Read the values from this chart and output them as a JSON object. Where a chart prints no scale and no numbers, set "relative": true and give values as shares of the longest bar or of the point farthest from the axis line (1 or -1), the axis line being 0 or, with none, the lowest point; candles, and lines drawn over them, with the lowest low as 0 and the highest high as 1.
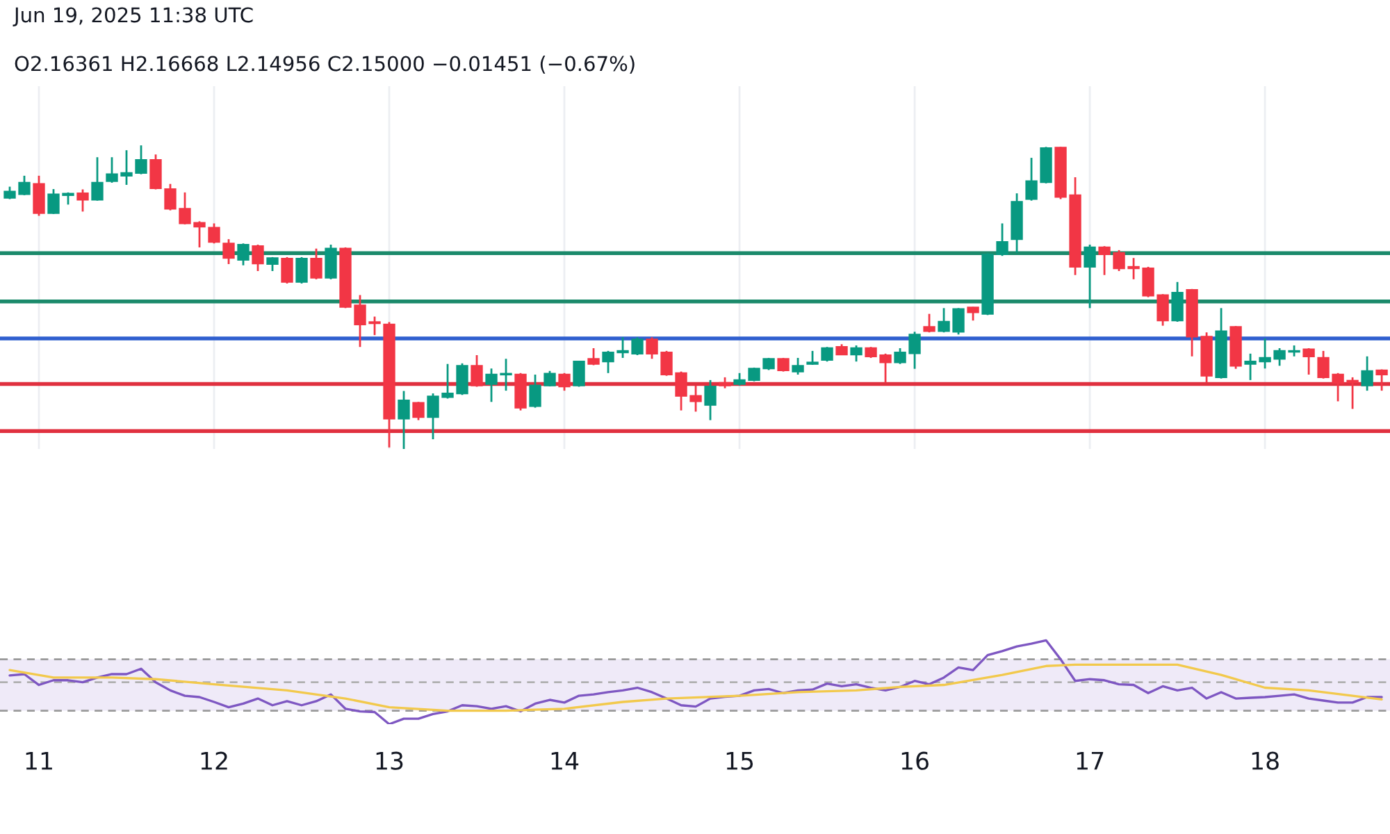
{
  "chart_data": [
    {
      "type": "candlestick",
      "relative": true,
      "tick_labels": false,
      "grid": "x",
      "annotations": [
        "Jun 19, 2025 11:38 UTC",
        "O2.16361 H2.16668 L2.14956 C2.15000 −0.01451 (−0.67%)"
      ],
      "x": [
        "2025-06-10T20:00",
        "2025-06-10T22:00",
        "2025-06-11T00:00",
        "2025-06-11T02:00",
        "2025-06-11T04:00",
        "2025-06-11T06:00",
        "2025-06-11T08:00",
        "2025-06-11T10:00",
        "2025-06-11T12:00",
        "2025-06-11T14:00",
        "2025-06-11T16:00",
        "2025-06-11T18:00",
        "2025-06-11T20:00",
        "2025-06-11T22:00",
        "2025-06-12T00:00",
        "2025-06-12T02:00",
        "2025-06-12T04:00",
        "2025-06-12T06:00",
        "2025-06-12T08:00",
        "2025-06-12T10:00",
        "2025-06-12T12:00",
        "2025-06-12T14:00",
        "2025-06-12T16:00",
        "2025-06-12T18:00",
        "2025-06-12T20:00",
        "2025-06-12T22:00",
        "2025-06-13T00:00",
        "2025-06-13T02:00",
        "2025-06-13T04:00",
        "2025-06-13T06:00",
        "2025-06-13T08:00",
        "2025-06-13T10:00",
        "2025-06-13T12:00",
        "2025-06-13T14:00",
        "2025-06-13T16:00",
        "2025-06-13T18:00",
        "2025-06-13T20:00",
        "2025-06-13T22:00",
        "2025-06-14T00:00",
        "2025-06-14T02:00",
        "2025-06-14T04:00",
        "2025-06-14T06:00",
        "2025-06-14T08:00",
        "2025-06-14T10:00",
        "2025-06-14T12:00",
        "2025-06-14T14:00",
        "2025-06-14T16:00",
        "2025-06-14T18:00",
        "2025-06-14T20:00",
        "2025-06-14T22:00",
        "2025-06-15T00:00",
        "2025-06-15T02:00",
        "2025-06-15T04:00",
        "2025-06-15T06:00",
        "2025-06-15T08:00",
        "2025-06-15T10:00",
        "2025-06-15T12:00",
        "2025-06-15T14:00",
        "2025-06-15T16:00",
        "2025-06-15T18:00",
        "2025-06-15T20:00",
        "2025-06-15T22:00",
        "2025-06-16T00:00",
        "2025-06-16T02:00",
        "2025-06-16T04:00",
        "2025-06-16T06:00",
        "2025-06-16T08:00",
        "2025-06-16T10:00",
        "2025-06-16T12:00",
        "2025-06-16T14:00",
        "2025-06-16T16:00",
        "2025-06-16T18:00",
        "2025-06-16T20:00",
        "2025-06-16T22:00",
        "2025-06-17T00:00",
        "2025-06-17T02:00",
        "2025-06-17T04:00",
        "2025-06-17T06:00",
        "2025-06-17T08:00",
        "2025-06-17T10:00",
        "2025-06-17T12:00",
        "2025-06-17T14:00",
        "2025-06-17T16:00",
        "2025-06-17T18:00",
        "2025-06-17T20:00",
        "2025-06-17T22:00",
        "2025-06-18T00:00",
        "2025-06-18T02:00",
        "2025-06-18T04:00",
        "2025-06-18T06:00",
        "2025-06-18T08:00",
        "2025-06-18T10:00",
        "2025-06-18T12:00",
        "2025-06-18T14:00",
        "2025-06-18T16:00"
      ],
      "ohlc": [
        [
          0.827,
          0.864,
          0.823,
          0.848
        ],
        [
          0.839,
          0.9,
          0.836,
          0.877
        ],
        [
          0.873,
          0.9,
          0.768,
          0.777
        ],
        [
          0.777,
          0.856,
          0.774,
          0.839
        ],
        [
          0.836,
          0.845,
          0.805,
          0.841
        ],
        [
          0.842,
          0.855,
          0.782,
          0.821
        ],
        [
          0.821,
          0.961,
          0.818,
          0.877
        ],
        [
          0.882,
          0.961,
          0.877,
          0.905
        ],
        [
          0.9,
          0.984,
          0.87,
          0.909
        ],
        [
          0.909,
          1,
          0.905,
          0.952
        ],
        [
          0.952,
          0.97,
          0.855,
          0.859
        ],
        [
          0.856,
          0.873,
          0.786,
          0.791
        ],
        [
          0.791,
          0.845,
          0.74,
          0.743
        ],
        [
          0.745,
          0.75,
          0.664,
          0.732
        ],
        [
          0.729,
          0.743,
          0.677,
          0.682
        ],
        [
          0.677,
          0.691,
          0.609,
          0.629
        ],
        [
          0.623,
          0.677,
          0.605,
          0.673
        ],
        [
          0.668,
          0.673,
          0.586,
          0.611
        ],
        [
          0.609,
          0.632,
          0.586,
          0.629
        ],
        [
          0.627,
          0.632,
          0.545,
          0.55
        ],
        [
          0.55,
          0.632,
          0.545,
          0.627
        ],
        [
          0.627,
          0.66,
          0.559,
          0.564
        ],
        [
          0.564,
          0.673,
          0.559,
          0.66
        ],
        [
          0.66,
          0.664,
          0.464,
          0.468
        ],
        [
          0.473,
          0.507,
          0.336,
          0.41
        ],
        [
          0.418,
          0.436,
          0.375,
          0.414
        ],
        [
          0.41,
          0.418,
          0.005,
          0.1
        ],
        [
          0.1,
          0.191,
          0,
          0.16
        ],
        [
          0.152,
          0.155,
          0.095,
          0.105
        ],
        [
          0.105,
          0.183,
          0.032,
          0.173
        ],
        [
          0.171,
          0.28,
          0.166,
          0.183
        ],
        [
          0.183,
          0.282,
          0.178,
          0.274
        ],
        [
          0.274,
          0.309,
          0.205,
          0.209
        ],
        [
          0.214,
          0.265,
          0.155,
          0.245
        ],
        [
          0.245,
          0.297,
          0.192,
          0.248
        ],
        [
          0.245,
          0.25,
          0.127,
          0.136
        ],
        [
          0.141,
          0.245,
          0.136,
          0.209
        ],
        [
          0.209,
          0.257,
          0.206,
          0.248
        ],
        [
          0.245,
          0.25,
          0.192,
          0.206
        ],
        [
          0.209,
          0.29,
          0.205,
          0.288
        ],
        [
          0.297,
          0.332,
          0.276,
          0.28
        ],
        [
          0.288,
          0.323,
          0.25,
          0.318
        ],
        [
          0.318,
          0.368,
          0.3,
          0.323
        ],
        [
          0.314,
          0.368,
          0.309,
          0.361
        ],
        [
          0.361,
          0.368,
          0.297,
          0.314
        ],
        [
          0.318,
          0.323,
          0.241,
          0.245
        ],
        [
          0.25,
          0.255,
          0.127,
          0.175
        ],
        [
          0.175,
          0.209,
          0.123,
          0.157
        ],
        [
          0.145,
          0.227,
          0.095,
          0.206
        ],
        [
          0.218,
          0.236,
          0.2,
          0.209
        ],
        [
          0.214,
          0.25,
          0.209,
          0.227
        ],
        [
          0.227,
          0.268,
          0.223,
          0.265
        ],
        [
          0.265,
          0.3,
          0.26,
          0.297
        ],
        [
          0.297,
          0.3,
          0.255,
          0.259
        ],
        [
          0.255,
          0.3,
          0.245,
          0.274
        ],
        [
          0.28,
          0.323,
          0.277,
          0.285
        ],
        [
          0.293,
          0.336,
          0.288,
          0.332
        ],
        [
          0.336,
          0.345,
          0.309,
          0.311
        ],
        [
          0.311,
          0.341,
          0.288,
          0.332
        ],
        [
          0.332,
          0.336,
          0.3,
          0.305
        ],
        [
          0.309,
          0.314,
          0.218,
          0.285
        ],
        [
          0.285,
          0.332,
          0.28,
          0.318
        ],
        [
          0.315,
          0.386,
          0.264,
          0.377
        ],
        [
          0.402,
          0.445,
          0.384,
          0.388
        ],
        [
          0.388,
          0.464,
          0.384,
          0.419
        ],
        [
          0.386,
          0.464,
          0.377,
          0.461
        ],
        [
          0.466,
          0.468,
          0.423,
          0.45
        ],
        [
          0.445,
          0.645,
          0.441,
          0.641
        ],
        [
          0.641,
          0.743,
          0.636,
          0.682
        ],
        [
          0.691,
          0.842,
          0.646,
          0.814
        ],
        [
          0.823,
          0.959,
          0.818,
          0.882
        ],
        [
          0.879,
          0.995,
          0.875,
          0.991
        ],
        [
          0.993,
          0.995,
          0.823,
          0.83
        ],
        [
          0.836,
          0.895,
          0.573,
          0.6
        ],
        [
          0.6,
          0.673,
          0.464,
          0.664
        ],
        [
          0.664,
          0.668,
          0.573,
          0.641
        ],
        [
          0.646,
          0.655,
          0.586,
          0.595
        ],
        [
          0.6,
          0.629,
          0.559,
          0.595
        ],
        [
          0.595,
          0.6,
          0.5,
          0.505
        ],
        [
          0.507,
          0.51,
          0.406,
          0.423
        ],
        [
          0.423,
          0.55,
          0.419,
          0.515
        ],
        [
          0.524,
          0.527,
          0.305,
          0.37
        ],
        [
          0.37,
          0.384,
          0.218,
          0.241
        ],
        [
          0.236,
          0.464,
          0.232,
          0.388
        ],
        [
          0.402,
          0.405,
          0.264,
          0.274
        ],
        [
          0.28,
          0.314,
          0.227,
          0.288
        ],
        [
          0.288,
          0.364,
          0.265,
          0.3
        ],
        [
          0.297,
          0.332,
          0.274,
          0.323
        ],
        [
          0.32,
          0.341,
          0.305,
          0.323
        ],
        [
          0.328,
          0.332,
          0.245,
          0.305
        ],
        [
          0.3,
          0.323,
          0.232,
          0.236
        ],
        [
          0.245,
          0.25,
          0.157,
          0.218
        ],
        [
          0.225,
          0.236,
          0.132,
          0.22
        ],
        [
          0.209,
          0.305,
          0.192,
          0.257
        ],
        [
          0.259,
          0.262,
          0.192,
          0.245
        ]
      ],
      "colors": [
        "#089981",
        "#089981",
        "#f23645",
        "#089981",
        "#089981",
        "#f23645",
        "#089981",
        "#089981",
        "#089981",
        "#089981",
        "#f23645",
        "#f23645",
        "#f23645",
        "#f23645",
        "#f23645",
        "#f23645",
        "#089981",
        "#f23645",
        "#089981",
        "#f23645",
        "#089981",
        "#f23645",
        "#089981",
        "#f23645",
        "#f23645",
        "#f23645",
        "#f23645",
        "#089981",
        "#f23645",
        "#089981",
        "#089981",
        "#089981",
        "#f23645",
        "#089981",
        "#089981",
        "#f23645",
        "#089981",
        "#089981",
        "#f23645",
        "#089981",
        "#f23645",
        "#089981",
        "#089981",
        "#089981",
        "#f23645",
        "#f23645",
        "#f23645",
        "#f23645",
        "#089981",
        "#f23645",
        "#089981",
        "#089981",
        "#089981",
        "#f23645",
        "#089981",
        "#089981",
        "#089981",
        "#f23645",
        "#089981",
        "#f23645",
        "#f23645",
        "#089981",
        "#089981",
        "#f23645",
        "#089981",
        "#089981",
        "#f23645",
        "#089981",
        "#089981",
        "#089981",
        "#089981",
        "#089981",
        "#f23645",
        "#f23645",
        "#089981",
        "#f23645",
        "#f23645",
        "#f23645",
        "#f23645",
        "#f23645",
        "#089981",
        "#f23645",
        "#f23645",
        "#089981",
        "#f23645",
        "#089981",
        "#089981",
        "#089981",
        "#089981",
        "#f23645",
        "#f23645",
        "#f23645",
        "#f23645",
        "#089981",
        "#f23645"
      ],
      "ref_lines": [
        {
          "axis": "y",
          "value": 0.645,
          "color": "#1b8a6b"
        },
        {
          "axis": "y",
          "value": 0.486,
          "color": "#1b8a6b"
        },
        {
          "axis": "y",
          "value": 0.364,
          "color": "#2f5fcf"
        },
        {
          "axis": "y",
          "value": 0.214,
          "color": "#e0303f"
        },
        {
          "axis": "y",
          "value": 0.059,
          "color": "#e0303f"
        }
      ],
      "xlim": [
        "2025-06-10T18:40",
        "2025-06-18T17:08"
      ],
      "xticks": [
        {
          "value": "2025-06-11",
          "label": null
        },
        {
          "value": "2025-06-12",
          "label": null
        },
        {
          "value": "2025-06-13",
          "label": null
        },
        {
          "value": "2025-06-14",
          "label": null
        },
        {
          "value": "2025-06-15",
          "label": null
        },
        {
          "value": "2025-06-16",
          "label": null
        },
        {
          "value": "2025-06-17",
          "label": null
        },
        {
          "value": "2025-06-18",
          "label": null
        }
      ]
    },
    {
      "type": "line",
      "relative": true,
      "tick_labels": "x",
      "x": [
        "2025-06-10T20:00",
        "2025-06-10T22:00",
        "2025-06-11T00:00",
        "2025-06-11T02:00",
        "2025-06-11T04:00",
        "2025-06-11T06:00",
        "2025-06-11T08:00",
        "2025-06-11T10:00",
        "2025-06-11T12:00",
        "2025-06-11T14:00",
        "2025-06-11T16:00",
        "2025-06-11T18:00",
        "2025-06-11T20:00",
        "2025-06-11T22:00",
        "2025-06-12T00:00",
        "2025-06-12T02:00",
        "2025-06-12T04:00",
        "2025-06-12T06:00",
        "2025-06-12T08:00",
        "2025-06-12T10:00",
        "2025-06-12T12:00",
        "2025-06-12T14:00",
        "2025-06-12T16:00",
        "2025-06-12T18:00",
        "2025-06-12T20:00",
        "2025-06-12T22:00",
        "2025-06-13T00:00",
        "2025-06-13T02:00",
        "2025-06-13T04:00",
        "2025-06-13T06:00",
        "2025-06-13T08:00",
        "2025-06-13T10:00",
        "2025-06-13T12:00",
        "2025-06-13T14:00",
        "2025-06-13T16:00",
        "2025-06-13T18:00",
        "2025-06-13T20:00",
        "2025-06-13T22:00",
        "2025-06-14T00:00",
        "2025-06-14T02:00",
        "2025-06-14T04:00",
        "2025-06-14T06:00",
        "2025-06-14T08:00",
        "2025-06-14T10:00",
        "2025-06-14T12:00",
        "2025-06-14T14:00",
        "2025-06-14T16:00",
        "2025-06-14T18:00",
        "2025-06-14T20:00",
        "2025-06-14T22:00",
        "2025-06-15T00:00",
        "2025-06-15T02:00",
        "2025-06-15T04:00",
        "2025-06-15T06:00",
        "2025-06-15T08:00",
        "2025-06-15T10:00",
        "2025-06-15T12:00",
        "2025-06-15T14:00",
        "2025-06-15T16:00",
        "2025-06-15T18:00",
        "2025-06-15T20:00",
        "2025-06-15T22:00",
        "2025-06-16T00:00",
        "2025-06-16T02:00",
        "2025-06-16T04:00",
        "2025-06-16T06:00",
        "2025-06-16T08:00",
        "2025-06-16T10:00",
        "2025-06-16T12:00",
        "2025-06-16T14:00",
        "2025-06-16T16:00",
        "2025-06-16T18:00",
        "2025-06-16T20:00",
        "2025-06-16T22:00",
        "2025-06-17T00:00",
        "2025-06-17T02:00",
        "2025-06-17T04:00",
        "2025-06-17T06:00",
        "2025-06-17T08:00",
        "2025-06-17T10:00",
        "2025-06-17T12:00",
        "2025-06-17T14:00",
        "2025-06-17T16:00",
        "2025-06-17T18:00",
        "2025-06-17T20:00",
        "2025-06-17T22:00",
        "2025-06-18T00:00",
        "2025-06-18T02:00",
        "2025-06-18T04:00",
        "2025-06-18T06:00",
        "2025-06-18T08:00",
        "2025-06-18T10:00",
        "2025-06-18T12:00",
        "2025-06-18T14:00",
        "2025-06-18T16:00"
      ],
      "series": [
        {
          "color": "#7e57c2",
          "values": [
            0.581,
            0.597,
            0.468,
            0.524,
            0.524,
            0.5,
            0.556,
            0.597,
            0.597,
            0.661,
            0.5,
            0.403,
            0.339,
            0.323,
            0.265,
            0.202,
            0.245,
            0.306,
            0.226,
            0.274,
            0.226,
            0.274,
            0.355,
            0.184,
            0.153,
            0.145,
            0,
            0.065,
            0.065,
            0.121,
            0.153,
            0.226,
            0.215,
            0.184,
            0.215,
            0.153,
            0.245,
            0.29,
            0.258,
            0.339,
            0.355,
            0.382,
            0.403,
            0.435,
            0.382,
            0.306,
            0.226,
            0.21,
            0.306,
            0.326,
            0.339,
            0.403,
            0.419,
            0.371,
            0.403,
            0.413,
            0.484,
            0.452,
            0.476,
            0.435,
            0.403,
            0.444,
            0.516,
            0.476,
            0.556,
            0.677,
            0.645,
            0.823,
            0.871,
            0.927,
            0.96,
            1,
            0.774,
            0.516,
            0.537,
            0.524,
            0.476,
            0.468,
            0.371,
            0.452,
            0.403,
            0.435,
            0.306,
            0.382,
            0.306,
            0.315,
            0.323,
            0.339,
            0.355,
            0.306,
            0.282,
            0.258,
            0.258,
            0.323,
            0.323
          ]
        },
        {
          "color": "#f2c94c",
          "x": [
            "2025-06-10T20:00",
            "2025-06-11T02:00",
            "2025-06-11T10:00",
            "2025-06-11T16:00",
            "2025-06-12T00:00",
            "2025-06-12T10:00",
            "2025-06-12T18:00",
            "2025-06-13T00:00",
            "2025-06-13T08:00",
            "2025-06-13T16:00",
            "2025-06-14T00:00",
            "2025-06-14T08:00",
            "2025-06-14T14:00",
            "2025-06-15T00:00",
            "2025-06-15T08:00",
            "2025-06-15T16:00",
            "2025-06-15T22:00",
            "2025-06-16T04:00",
            "2025-06-16T12:00",
            "2025-06-16T18:00",
            "2025-06-16T22:00",
            "2025-06-17T06:00",
            "2025-06-17T12:00",
            "2025-06-17T18:00",
            "2025-06-18T00:00",
            "2025-06-18T06:00",
            "2025-06-18T12:00",
            "2025-06-18T16:00"
          ],
          "values": [
            0.645,
            0.556,
            0.556,
            0.537,
            0.476,
            0.403,
            0.306,
            0.202,
            0.161,
            0.161,
            0.184,
            0.265,
            0.306,
            0.339,
            0.382,
            0.403,
            0.444,
            0.468,
            0.587,
            0.694,
            0.71,
            0.71,
            0.71,
            0.587,
            0.435,
            0.403,
            0.339,
            0.295
          ]
        }
      ],
      "bands": [
        {
          "axis": "y",
          "from": 0.161,
          "to": 0.774,
          "color": "#efeaf8"
        }
      ],
      "ref_lines": [
        {
          "axis": "y",
          "value": 0.774,
          "color": "#9a9a9a",
          "line_style": "dashed"
        },
        {
          "axis": "y",
          "value": 0.5,
          "color": "#b0b0b0",
          "line_style": "dashed"
        },
        {
          "axis": "y",
          "value": 0.161,
          "color": "#9a9a9a",
          "line_style": "dashed"
        }
      ],
      "xlim": [
        "2025-06-10T18:40",
        "2025-06-18T17:08"
      ],
      "xticks": [
        {
          "value": "2025-06-11",
          "label": "11"
        },
        {
          "value": "2025-06-12",
          "label": "12"
        },
        {
          "value": "2025-06-13",
          "label": "13"
        },
        {
          "value": "2025-06-14",
          "label": "14"
        },
        {
          "value": "2025-06-15",
          "label": "15"
        },
        {
          "value": "2025-06-16",
          "label": "16"
        },
        {
          "value": "2025-06-17",
          "label": "17"
        },
        {
          "value": "2025-06-18",
          "label": "18"
        }
      ]
    }
  ]
}
